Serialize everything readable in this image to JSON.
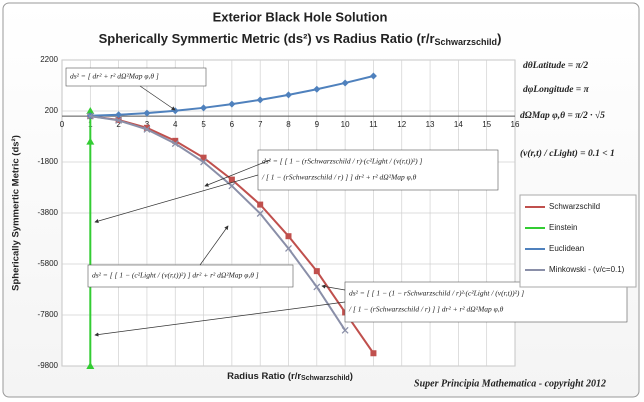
{
  "chart_data": {
    "type": "line",
    "title": "Exterior Black Hole Solution",
    "subtitle": [
      "Spherically Symmertic Metric (ds²) vs Radius Ratio (r/r",
      "Schwarzschild",
      ")"
    ],
    "x_label": [
      "Radius Ratio (r/r",
      "Schwarzschild",
      ")"
    ],
    "y_label": "Spherically Symmertic Metric (ds²)",
    "footer": "Super Principia Mathematica - copyright 2012",
    "x": [
      1,
      2,
      3,
      4,
      5,
      6,
      7,
      8,
      9,
      10,
      11
    ],
    "series": [
      {
        "name": "Schwarzschild",
        "color": "#c0504d",
        "marker": "square",
        "values": [
          0,
          -150,
          -460,
          -970,
          -1630,
          -2490,
          -3470,
          -4710,
          -6080,
          -7700,
          -9300
        ]
      },
      {
        "name": "Einstein",
        "color": "#33cc33",
        "marker": "triangle",
        "x": [
          1,
          1,
          1
        ],
        "values": [
          200,
          -1000,
          -9800
        ]
      },
      {
        "name": "Euclidean",
        "color": "#4f81bd",
        "marker": "diamond",
        "values": [
          13,
          52,
          117,
          208,
          325,
          468,
          637,
          832,
          1053,
          1300,
          1573
        ]
      },
      {
        "name": "Minkowski - (v/c=0.1)",
        "color": "#8a8fa8",
        "marker": "x",
        "values": [
          0,
          -170,
          -520,
          -1080,
          -1800,
          -2740,
          -3820,
          -5190,
          -6700,
          -8400,
          null
        ]
      }
    ],
    "xlim": [
      0,
      16
    ],
    "xticks": [
      0,
      1,
      2,
      3,
      4,
      5,
      6,
      7,
      8,
      9,
      10,
      11,
      12,
      13,
      14,
      15,
      16
    ],
    "ylim": [
      -9800,
      2200
    ],
    "yticks": [
      2200,
      200,
      -1800,
      -3800,
      -5800,
      -7800,
      -9800
    ],
    "grid": true,
    "legend": "right",
    "annotations": [
      [
        "ds² = [ dr² + r² dΩ²Map φ,θ ]"
      ],
      [
        "ds² = [ [ 1 − (rSchwarzschild / r)·(c²Light / (v(r,t))²) ]",
        "/ [ 1 − (rSchwarzschild / r) ] ] dr² + r² dΩ²Map φ,θ"
      ],
      [
        "ds² = [ [ 1 − (c²Light / (v(r,t))²) ] dr² + r² dΩ²Map φ,θ ]"
      ],
      [
        "ds² = [ [ 1 − (1 − rSchwarzschild / r)²·(c²Light / (v(r,t))²) ]",
        "/ [ 1 − (rSchwarzschild / r) ] ] dr² + r² dΩ²Map φ,θ"
      ]
    ],
    "constants": [
      "dθLatitude = π/2",
      "dφLongitude = π",
      "dΩMap φ,θ = π/2 · √5",
      "(v(r,t) / cLight) = 0.1 < 1"
    ]
  }
}
